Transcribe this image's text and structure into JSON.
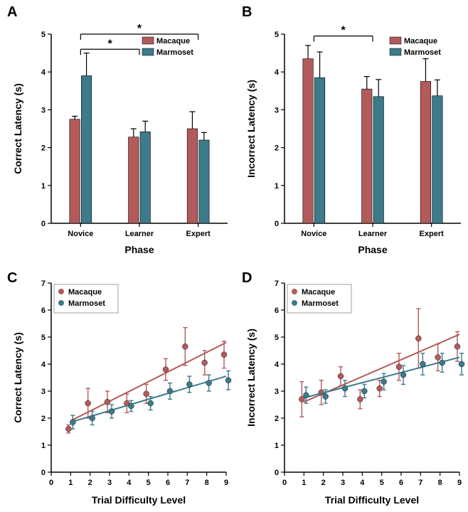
{
  "colors": {
    "macaque": "#b35a5a",
    "marmoset": "#3d7a8a",
    "axis": "#000000",
    "tick": "#000000",
    "text": "#000000",
    "bg": "#ffffff"
  },
  "fonts": {
    "label_size": 14,
    "tick_size": 11,
    "legend_size": 11,
    "panel_label_size": 20,
    "weight_bold": "bold"
  },
  "panelA": {
    "label": "A",
    "type": "bar",
    "ylabel": "Correct Latency (s)",
    "xlabel": "Phase",
    "ylim": [
      0,
      5
    ],
    "ytick_step": 1,
    "categories": [
      "Novice",
      "Learner",
      "Expert"
    ],
    "series": [
      {
        "name": "Macaque",
        "values": [
          2.75,
          2.28,
          2.5
        ],
        "errs": [
          0.08,
          0.22,
          0.45
        ]
      },
      {
        "name": "Marmoset",
        "values": [
          3.9,
          2.42,
          2.2
        ],
        "errs": [
          0.6,
          0.28,
          0.2
        ]
      }
    ],
    "sig": [
      {
        "from": 0,
        "to": 1,
        "y": 4.6,
        "label": "*"
      },
      {
        "from": 0,
        "to": 2,
        "y": 5.0,
        "label": "*"
      }
    ],
    "bar_width": 0.35
  },
  "panelB": {
    "label": "B",
    "type": "bar",
    "ylabel": "Incorrect Latency (s)",
    "xlabel": "Phase",
    "ylim": [
      0,
      5
    ],
    "ytick_step": 1,
    "categories": [
      "Novice",
      "Learner",
      "Expert"
    ],
    "series": [
      {
        "name": "Macaque",
        "values": [
          4.35,
          3.55,
          3.75
        ],
        "errs": [
          0.35,
          0.33,
          0.6
        ]
      },
      {
        "name": "Marmoset",
        "values": [
          3.85,
          3.35,
          3.37
        ],
        "errs": [
          0.68,
          0.45,
          0.42
        ]
      }
    ],
    "sig": [
      {
        "from": 0,
        "to": 1,
        "y": 4.95,
        "label": "*"
      }
    ],
    "bar_width": 0.35
  },
  "panelC": {
    "label": "C",
    "type": "scatter",
    "ylabel": "Correct Latency (s)",
    "xlabel": "Trial Difficulty Level",
    "xlim": [
      0,
      9
    ],
    "ylim": [
      0,
      7
    ],
    "xtick_step": 1,
    "ytick_step": 1,
    "series": [
      {
        "name": "Macaque",
        "x": [
          1,
          2,
          3,
          4,
          5,
          6,
          7,
          8,
          9
        ],
        "y": [
          1.6,
          2.55,
          2.6,
          2.55,
          2.9,
          3.8,
          4.65,
          4.05,
          4.35
        ],
        "err": [
          0.15,
          0.55,
          0.4,
          0.35,
          0.35,
          0.4,
          0.7,
          0.45,
          0.5
        ],
        "trend": {
          "x1": 1,
          "y1": 1.9,
          "x2": 9,
          "y2": 4.8
        }
      },
      {
        "name": "Marmoset",
        "x": [
          1,
          2,
          3,
          4,
          5,
          6,
          7,
          8,
          9
        ],
        "y": [
          1.85,
          2.0,
          2.25,
          2.45,
          2.55,
          3.0,
          3.25,
          3.3,
          3.4
        ],
        "err": [
          0.25,
          0.25,
          0.25,
          0.2,
          0.25,
          0.3,
          0.3,
          0.3,
          0.35
        ],
        "trend": {
          "x1": 1,
          "y1": 1.85,
          "x2": 9,
          "y2": 3.55
        }
      }
    ]
  },
  "panelD": {
    "label": "D",
    "type": "scatter",
    "ylabel": "Incorrect Latency (s)",
    "xlabel": "Trial Difficulty Level",
    "xlim": [
      0,
      9
    ],
    "ylim": [
      0,
      7
    ],
    "xtick_step": 1,
    "ytick_step": 1,
    "series": [
      {
        "name": "Macaque",
        "x": [
          1,
          2,
          3,
          4,
          5,
          6,
          7,
          8,
          9
        ],
        "y": [
          2.7,
          2.95,
          3.55,
          2.7,
          3.1,
          3.9,
          4.95,
          4.25,
          4.65
        ],
        "err": [
          0.65,
          0.45,
          0.35,
          0.35,
          0.3,
          0.5,
          1.1,
          0.5,
          0.55
        ],
        "trend": {
          "x1": 1,
          "y1": 2.6,
          "x2": 9,
          "y2": 5.1
        }
      },
      {
        "name": "Marmoset",
        "x": [
          1,
          2,
          3,
          4,
          5,
          6,
          7,
          8,
          9
        ],
        "y": [
          2.85,
          2.8,
          3.1,
          3.0,
          3.35,
          3.6,
          4.0,
          4.05,
          4.0
        ],
        "err": [
          0.3,
          0.25,
          0.3,
          0.25,
          0.3,
          0.35,
          0.4,
          0.35,
          0.4
        ],
        "trend": {
          "x1": 1,
          "y1": 2.75,
          "x2": 9,
          "y2": 4.25
        }
      }
    ]
  },
  "legend_labels": [
    "Macaque",
    "Marmoset"
  ]
}
